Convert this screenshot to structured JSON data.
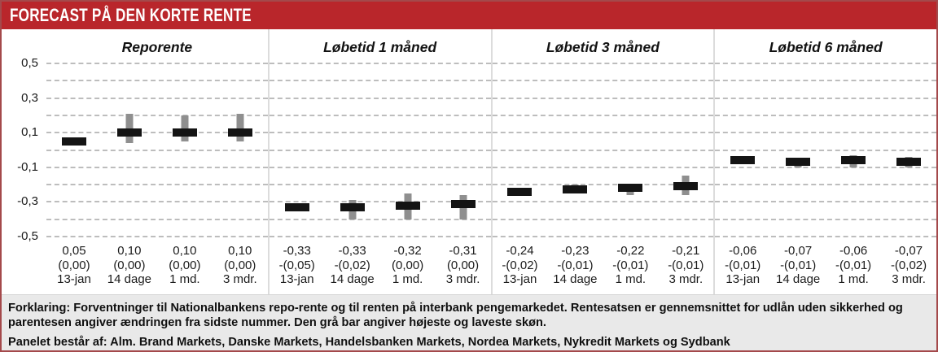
{
  "header": {
    "title": "FORECAST PÅ DEN KORTE RENTE"
  },
  "footer": {
    "explanation": "Forklaring: Forventninger til Nationalbankens repo-rente og til renten på interbank pengemarkedet. Rentesatsen er gennemsnittet for udlån uden sikkerhed og parentesen angiver ændringen fra sidste nummer. Den grå bar angiver højeste og laveste skøn.",
    "panel_note": "Panelet består af: Alm. Brand Markets, Danske Markets, Handelsbanken Markets, Nordea Markets, Nykredit Markets og Sydbank"
  },
  "colors": {
    "header_bg": "#b9262b",
    "frame_border": "#a4494b",
    "mean_bar": "#141414",
    "range_bar": "#8f8f8f",
    "gridline": "#bdbdbd",
    "footer_bg": "#e9e9e9"
  },
  "chart_data": {
    "type": "range-bar",
    "ylim": [
      -0.5,
      0.5
    ],
    "grid_step": 0.1,
    "grid": "dashed horizontal, every 0.1",
    "legend_note": "black bar = average estimate, grey bar = highest and lowest estimate",
    "yticks": [
      {
        "value": 0.5,
        "label": "0,5"
      },
      {
        "value": 0.3,
        "label": "0,3"
      },
      {
        "value": 0.1,
        "label": "0,1"
      },
      {
        "value": -0.1,
        "label": "-0,1"
      },
      {
        "value": -0.3,
        "label": "-0,3"
      },
      {
        "value": -0.5,
        "label": "-0,5"
      }
    ],
    "panels": [
      {
        "title": "Reporente",
        "points": [
          {
            "period": "13-jan",
            "value": 0.05,
            "value_label": "0,05",
            "change_label": "(0,00)",
            "range": [
              0.05,
              0.05
            ]
          },
          {
            "period": "14 dage",
            "value": 0.1,
            "value_label": "0,10",
            "change_label": "(0,00)",
            "range": [
              0.04,
              0.21
            ]
          },
          {
            "period": "1 md.",
            "value": 0.1,
            "value_label": "0,10",
            "change_label": "(0,00)",
            "range": [
              0.05,
              0.2
            ]
          },
          {
            "period": "3 mdr.",
            "value": 0.1,
            "value_label": "0,10",
            "change_label": "(0,00)",
            "range": [
              0.05,
              0.21
            ]
          }
        ]
      },
      {
        "title": "Løbetid 1 måned",
        "points": [
          {
            "period": "13-jan",
            "value": -0.33,
            "value_label": "-0,33",
            "change_label": "-(0,05)",
            "range": [
              -0.33,
              -0.33
            ]
          },
          {
            "period": "14 dage",
            "value": -0.33,
            "value_label": "-0,33",
            "change_label": "-(0,02)",
            "range": [
              -0.4,
              -0.29
            ]
          },
          {
            "period": "1 md.",
            "value": -0.32,
            "value_label": "-0,32",
            "change_label": "(0,00)",
            "range": [
              -0.4,
              -0.25
            ]
          },
          {
            "period": "3 mdr.",
            "value": -0.31,
            "value_label": "-0,31",
            "change_label": "(0,00)",
            "range": [
              -0.4,
              -0.26
            ]
          }
        ]
      },
      {
        "title": "Løbetid 3 måned",
        "points": [
          {
            "period": "13-jan",
            "value": -0.24,
            "value_label": "-0,24",
            "change_label": "-(0,02)",
            "range": [
              -0.24,
              -0.24
            ]
          },
          {
            "period": "14 dage",
            "value": -0.23,
            "value_label": "-0,23",
            "change_label": "-(0,01)",
            "range": [
              -0.25,
              -0.2
            ]
          },
          {
            "period": "1 md.",
            "value": -0.22,
            "value_label": "-0,22",
            "change_label": "-(0,01)",
            "range": [
              -0.26,
              -0.21
            ]
          },
          {
            "period": "3 mdr.",
            "value": -0.21,
            "value_label": "-0,21",
            "change_label": "-(0,01)",
            "range": [
              -0.26,
              -0.15
            ]
          }
        ]
      },
      {
        "title": "Løbetid 6 måned",
        "points": [
          {
            "period": "13-jan",
            "value": -0.06,
            "value_label": "-0,06",
            "change_label": "-(0,01)",
            "range": [
              -0.06,
              -0.06
            ]
          },
          {
            "period": "14 dage",
            "value": -0.07,
            "value_label": "-0,07",
            "change_label": "-(0,01)",
            "range": [
              -0.1,
              -0.05
            ]
          },
          {
            "period": "1 md.",
            "value": -0.06,
            "value_label": "-0,06",
            "change_label": "-(0,01)",
            "range": [
              -0.1,
              -0.03
            ]
          },
          {
            "period": "3 mdr.",
            "value": -0.07,
            "value_label": "-0,07",
            "change_label": "-(0,02)",
            "range": [
              -0.1,
              -0.04
            ]
          }
        ]
      }
    ]
  }
}
